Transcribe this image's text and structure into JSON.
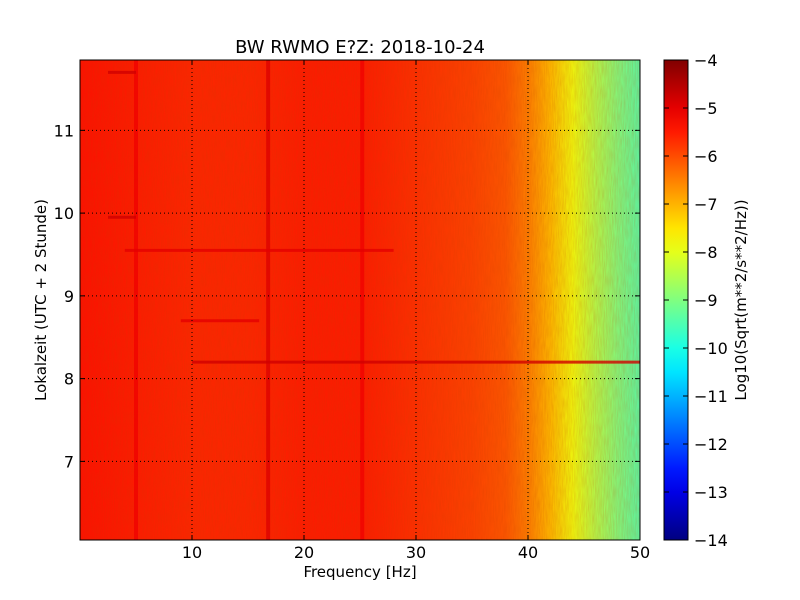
{
  "chart_data": {
    "type": "heatmap",
    "title": "BW RWMO E?Z: 2018-10-24",
    "xlabel": "Frequency [Hz]",
    "ylabel": "Lokalzeit (UTC + 2 Stunde)",
    "colorbar_label": "Log10(Sqrt(m**2/s**2/Hz))",
    "xlim": [
      0,
      50
    ],
    "ylim": [
      11.85,
      6.05
    ],
    "x_ticks": [
      10,
      20,
      30,
      40,
      50
    ],
    "x_tick_labels": [
      "10",
      "20",
      "30",
      "40",
      "50"
    ],
    "y_ticks": [
      7,
      8,
      9,
      10,
      11
    ],
    "y_tick_labels": [
      "7",
      "8",
      "9",
      "10",
      "11"
    ],
    "clim": [
      -14,
      -4
    ],
    "colorbar_ticks": [
      -4,
      -5,
      -6,
      -7,
      -8,
      -9,
      -10,
      -11,
      -12,
      -13,
      -14
    ],
    "colorbar_tick_labels": [
      "−4",
      "−5",
      "−6",
      "−7",
      "−8",
      "−9",
      "−10",
      "−11",
      "−12",
      "−13",
      "−14"
    ],
    "colormap": "jet",
    "grid": true,
    "grid_style": "dotted",
    "value_profile": {
      "frequency_hz": [
        0,
        5,
        10,
        15,
        20,
        25,
        30,
        35,
        38,
        40,
        42,
        44,
        46,
        48,
        50
      ],
      "log10_amplitude": [
        -5.4,
        -5.5,
        -5.6,
        -5.6,
        -5.5,
        -5.5,
        -5.7,
        -5.9,
        -6.1,
        -6.5,
        -7.1,
        -7.9,
        -8.5,
        -9.0,
        -9.4
      ]
    },
    "vertical_features": [
      {
        "frequency_hz": 5,
        "from_hour": 6.05,
        "to_hour": 11.85,
        "log10_amplitude": -5.1
      },
      {
        "frequency_hz": 16.8,
        "from_hour": 6.05,
        "to_hour": 11.85,
        "log10_amplitude": -4.9
      },
      {
        "frequency_hz": 25.2,
        "from_hour": 6.05,
        "to_hour": 11.85,
        "log10_amplitude": -5.1
      }
    ],
    "horizontal_features": [
      {
        "time_hour": 8.2,
        "from_hz": 10,
        "to_hz": 50,
        "log10_amplitude": -4.8
      },
      {
        "time_hour": 8.7,
        "from_hz": 9,
        "to_hz": 16,
        "log10_amplitude": -5.0
      },
      {
        "time_hour": 9.55,
        "from_hz": 4,
        "to_hz": 28,
        "log10_amplitude": -5.0
      },
      {
        "time_hour": 9.95,
        "from_hz": 2.5,
        "to_hz": 5,
        "log10_amplitude": -4.8
      },
      {
        "time_hour": 11.7,
        "from_hz": 2.5,
        "to_hz": 5,
        "log10_amplitude": -4.8
      }
    ]
  }
}
